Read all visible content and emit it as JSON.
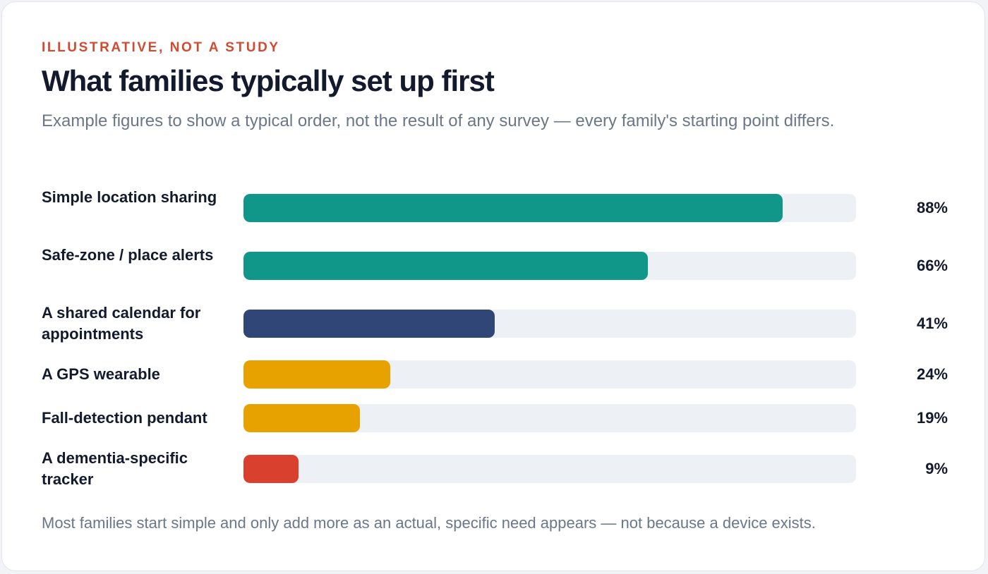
{
  "card": {
    "eyebrow": "ILLUSTRATIVE, NOT A STUDY",
    "title": "What families typically set up first",
    "subtitle": "Example figures to show a typical order, not the result of any survey — every family's starting point differs.",
    "footnote": "Most families start simple and only add more as an actual, specific need appears — not because a device exists."
  },
  "chart_data": {
    "type": "bar",
    "orientation": "horizontal",
    "categories": [
      "Simple location sharing",
      "Safe-zone / place alerts",
      "A shared calendar for appointments",
      "A GPS wearable",
      "Fall-detection pendant",
      "A dementia-specific tracker"
    ],
    "values": [
      88,
      66,
      41,
      24,
      19,
      9
    ],
    "value_labels": [
      "88%",
      "66%",
      "41%",
      "24%",
      "19%",
      "9%"
    ],
    "colors": [
      "#11968a",
      "#11968a",
      "#2f4677",
      "#e8a200",
      "#e8a200",
      "#d9412e"
    ],
    "track_color": "#edf0f5",
    "xlim": [
      0,
      100
    ],
    "grid": false,
    "legend": "none"
  }
}
